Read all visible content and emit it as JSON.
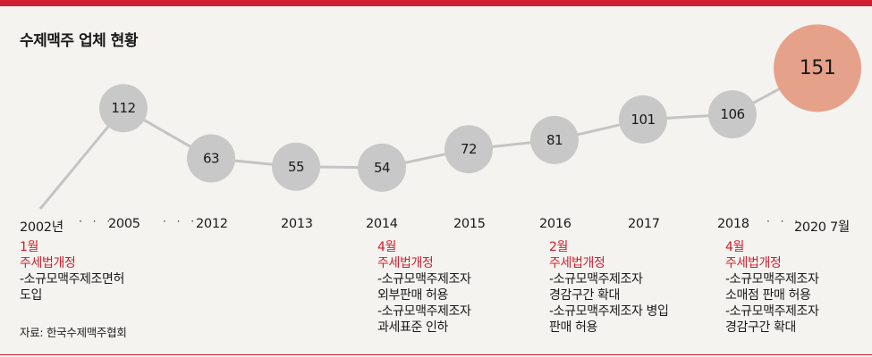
{
  "title": "수제맥주 업체 현황",
  "colors": {
    "accent": "#d01f2e",
    "bubble": "#c8c8c8",
    "highlight_bubble": "#e6a18a",
    "line": "#c4c4c4",
    "background": "#f4f3ef"
  },
  "chart_data": {
    "type": "line",
    "title": "수제맥주 업체 현황",
    "categories": [
      "2002년",
      "2005",
      "2012",
      "2013",
      "2014",
      "2015",
      "2016",
      "2017",
      "2018",
      "2020 7월"
    ],
    "values": [
      null,
      112,
      63,
      55,
      54,
      72,
      81,
      101,
      106,
      151
    ],
    "value_labels": [
      "",
      "112",
      "63",
      "55",
      "54",
      "72",
      "81",
      "101",
      "106",
      "151"
    ],
    "highlight_index": 9,
    "axis_breaks": [
      "· · ·",
      "· · ·",
      "· · ·"
    ],
    "grid": false
  },
  "axis": {
    "break1": "· · ·",
    "break2": "· · ·",
    "break3": "· · ·"
  },
  "events": [
    {
      "month": "1월",
      "law": "주세법개정",
      "lines": [
        "-소규모맥주제조면허",
        "도입"
      ]
    },
    {
      "month": "4월",
      "law": "주세법개정",
      "lines": [
        "-소규모맥주제조자",
        "외부판매 허용",
        "-소규모맥주제조자",
        "과세표준 인하"
      ]
    },
    {
      "month": "2월",
      "law": "주세법개정",
      "lines": [
        "-소규모맥주제조자",
        "경감구간 확대",
        "-소규모맥주제조자 병입",
        "판매 허용"
      ]
    },
    {
      "month": "4월",
      "law": "주세법개정",
      "lines": [
        "-소규모맥주제조자",
        "소매점 판매 허용",
        "-소규모맥주제조자",
        "경감구간 확대"
      ]
    }
  ],
  "source": "자료: 한국수제맥주협회"
}
